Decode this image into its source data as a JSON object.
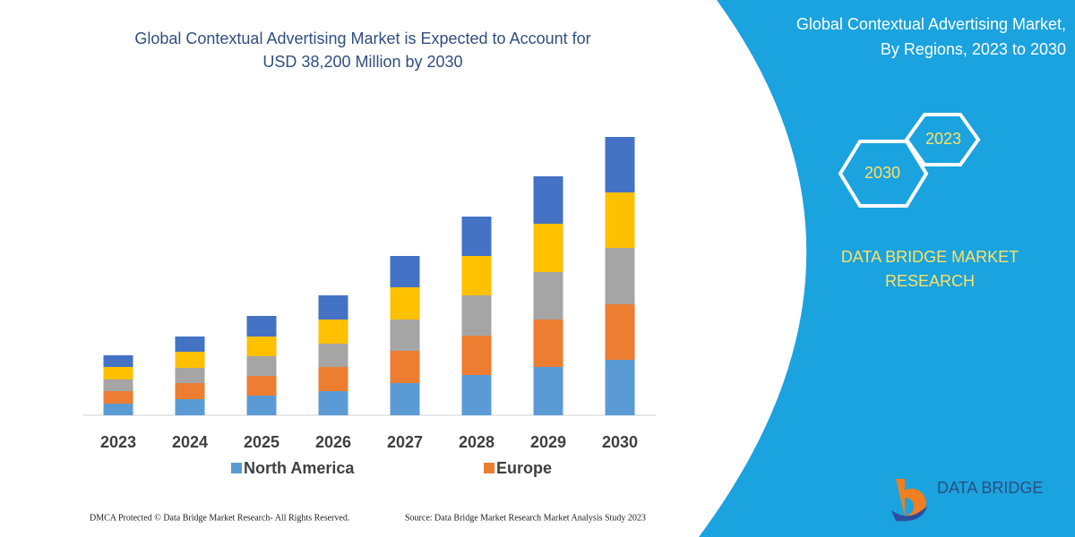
{
  "chart_data": {
    "type": "stacked-bar",
    "title": [
      "Global Contextual Advertising Market is Expected to Account for",
      "USD 38,200 Million by 2030"
    ],
    "categories": [
      "2023",
      "2024",
      "2025",
      "2026",
      "2027",
      "2028",
      "2029",
      "2030"
    ],
    "series": [
      {
        "name": "North America",
        "color": "#5b9bd5",
        "values": [
          13,
          18,
          22,
          27,
          36,
          45,
          54,
          62
        ]
      },
      {
        "name": "Europe",
        "color": "#ed7d31",
        "values": [
          14,
          18,
          22,
          27,
          36,
          44,
          53,
          62
        ]
      },
      {
        "color": "#a5a5a5",
        "values": [
          13,
          17,
          22,
          26,
          35,
          45,
          53,
          63
        ]
      },
      {
        "color": "#ffc000",
        "values": [
          14,
          18,
          22,
          27,
          36,
          44,
          54,
          62
        ]
      },
      {
        "color": "#4472c4",
        "values": [
          13,
          17,
          23,
          27,
          35,
          44,
          53,
          62
        ]
      }
    ],
    "ylim": [
      0,
      320
    ]
  },
  "side_panel": {
    "title": [
      "Global Contextual Advertising Market,",
      "By Regions, 2023 to 2030"
    ],
    "hexagons": [
      "2023",
      "2030"
    ],
    "brand": [
      "DATA BRIDGE MARKET",
      "RESEARCH"
    ],
    "logo": "DATA BRIDGE"
  },
  "footer": {
    "left": "DMCA Protected © Data Bridge Market Research-  All Rights Reserved.",
    "right": "Source: Data Bridge Market Research  Market Analysis Study 2023"
  }
}
